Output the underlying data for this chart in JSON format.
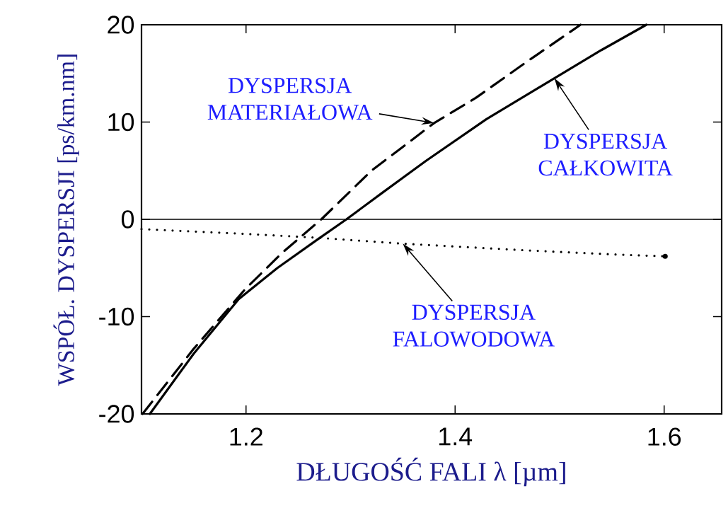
{
  "chart_data": {
    "type": "line",
    "xlabel": "DŁUGOŚĆ FALI λ [µm]",
    "ylabel": "WSPÓŁ. DYSPERSJI [ps/km.nm]",
    "xlim": [
      1.1,
      1.655
    ],
    "ylim": [
      -20,
      20
    ],
    "xticks": [
      1.2,
      1.4,
      1.6
    ],
    "yticks": [
      -20,
      -10,
      0,
      10,
      20
    ],
    "grid": false,
    "marker": "none",
    "series": [
      {
        "color": "#000000",
        "line_style": "solid",
        "x": [
          1.108,
          1.15,
          1.193,
          1.23,
          1.268,
          1.296,
          1.33,
          1.372,
          1.43,
          1.495,
          1.54,
          1.583
        ],
        "values": [
          -20,
          -13.8,
          -8.2,
          -5.0,
          -2.1,
          0,
          2.7,
          6,
          10.3,
          14.5,
          17.4,
          20
        ]
      },
      {
        "color": "#000000",
        "line_style": "dashed",
        "x": [
          1.101,
          1.15,
          1.199,
          1.235,
          1.272,
          1.32,
          1.38,
          1.42,
          1.47,
          1.52
        ],
        "values": [
          -20,
          -13.3,
          -7.2,
          -3.4,
          0,
          5.0,
          9.9,
          12.5,
          16.3,
          20
        ]
      },
      {
        "color": "#000000",
        "line_style": "dotted",
        "x": [
          1.1,
          1.2,
          1.27,
          1.35,
          1.47,
          1.55,
          1.601
        ],
        "values": [
          -1.0,
          -1.5,
          -1.9,
          -2.5,
          -3.2,
          -3.6,
          -3.8
        ]
      }
    ],
    "ref_lines": [
      {
        "axis": "y",
        "value": 0,
        "color": "#000000"
      }
    ],
    "annotations": [
      {
        "text": "DYSPERSJA MATERIAŁOWA",
        "x": 1.38,
        "y": 9.9
      },
      {
        "text": "DYSPERSJA CAŁKOWITA",
        "x": 1.495,
        "y": 14.5
      },
      {
        "text": "DYSPERSJA FALOWODOWA",
        "x": 1.35,
        "y": -2.5
      }
    ]
  }
}
